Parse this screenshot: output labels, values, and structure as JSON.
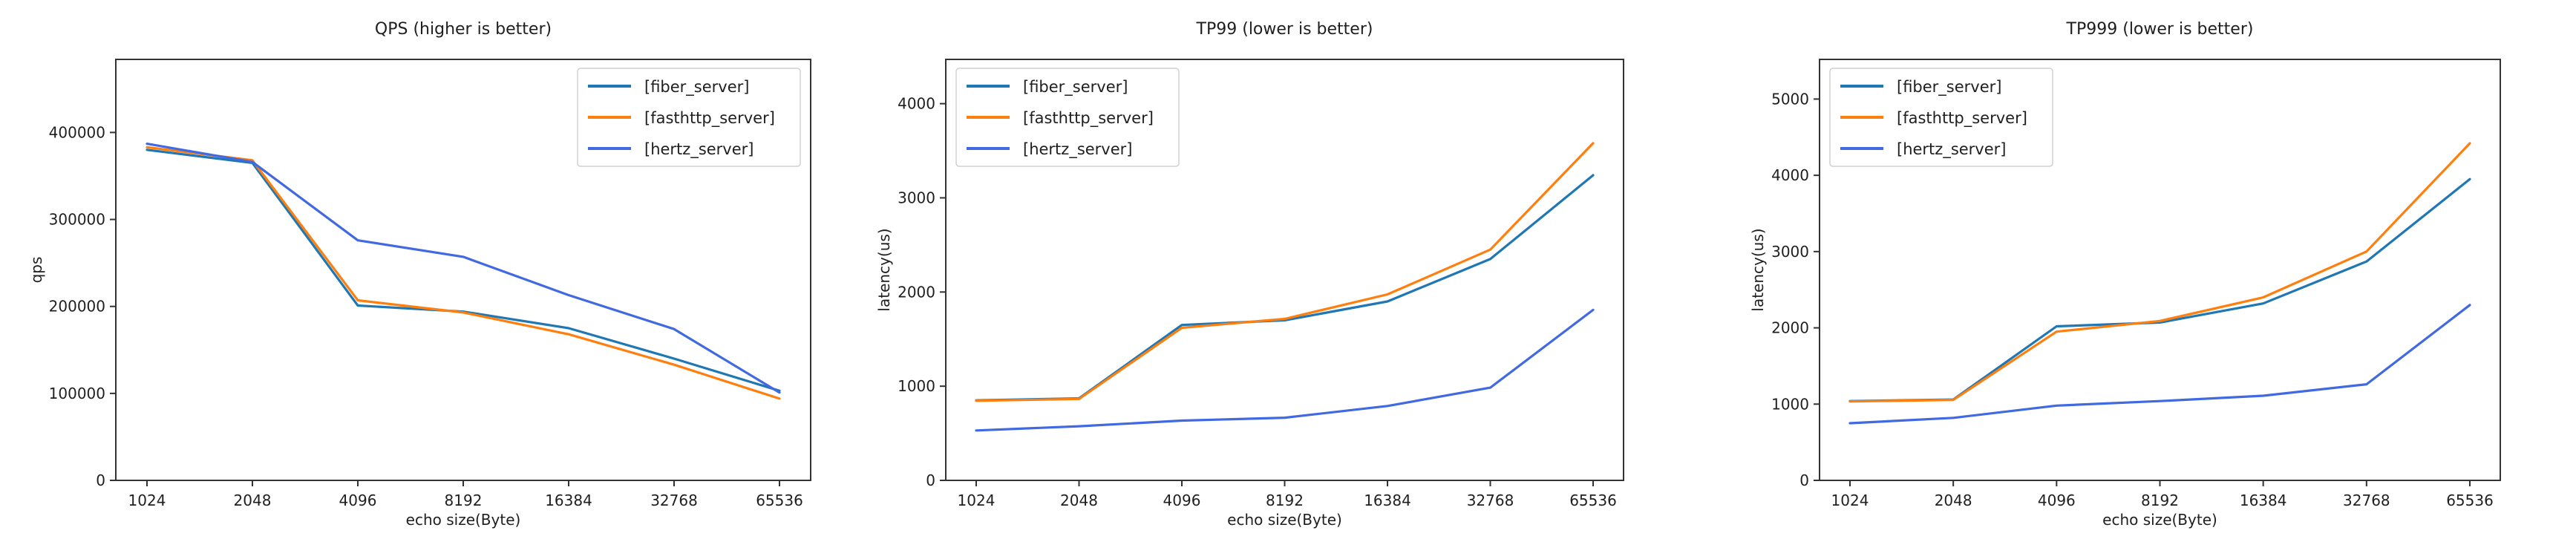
{
  "figure": {
    "background": "#ffffff",
    "text_color": "#1f1f1f",
    "spine_color": "#333333"
  },
  "chart_data": [
    {
      "id": "qps",
      "type": "line",
      "title": "QPS (higher is better)",
      "xlabel": "echo size(Byte)",
      "ylabel": "qps",
      "categories": [
        "1024",
        "2048",
        "4096",
        "8192",
        "16384",
        "32768",
        "65536"
      ],
      "yticks": [
        0,
        100000,
        200000,
        300000,
        400000
      ],
      "ylim": [
        0,
        484000
      ],
      "grid": false,
      "legend_position": "upper right",
      "series": [
        {
          "name": "[fiber_server]",
          "color": "#1f77b4",
          "values": [
            380000,
            365000,
            201000,
            194000,
            175000,
            140000,
            103000
          ]
        },
        {
          "name": "[fasthttp_server]",
          "color": "#ff7f0e",
          "values": [
            383000,
            368000,
            207000,
            193000,
            168000,
            133000,
            94000
          ]
        },
        {
          "name": "[hertz_server]",
          "color": "#4169e1",
          "values": [
            387000,
            366000,
            276000,
            257000,
            213000,
            174000,
            101000
          ]
        }
      ]
    },
    {
      "id": "tp99",
      "type": "line",
      "title": "TP99 (lower is better)",
      "xlabel": "echo size(Byte)",
      "ylabel": "latency(us)",
      "categories": [
        "1024",
        "2048",
        "4096",
        "8192",
        "16384",
        "32768",
        "65536"
      ],
      "yticks": [
        0,
        1000,
        2000,
        3000,
        4000
      ],
      "ylim": [
        0,
        4470
      ],
      "grid": false,
      "legend_position": "upper left",
      "series": [
        {
          "name": "[fiber_server]",
          "color": "#1f77b4",
          "values": [
            850,
            870,
            1650,
            1700,
            1900,
            2350,
            3240
          ]
        },
        {
          "name": "[fasthttp_server]",
          "color": "#ff7f0e",
          "values": [
            845,
            865,
            1620,
            1715,
            1975,
            2450,
            3580
          ]
        },
        {
          "name": "[hertz_server]",
          "color": "#4169e1",
          "values": [
            530,
            575,
            635,
            665,
            790,
            985,
            1810
          ]
        }
      ]
    },
    {
      "id": "tp999",
      "type": "line",
      "title": "TP999 (lower is better)",
      "xlabel": "echo size(Byte)",
      "ylabel": "latency(us)",
      "categories": [
        "1024",
        "2048",
        "4096",
        "8192",
        "16384",
        "32768",
        "65536"
      ],
      "yticks": [
        0,
        1000,
        2000,
        3000,
        4000,
        5000
      ],
      "ylim": [
        0,
        5520
      ],
      "grid": false,
      "legend_position": "upper left",
      "series": [
        {
          "name": "[fiber_server]",
          "color": "#1f77b4",
          "values": [
            1040,
            1060,
            2020,
            2070,
            2320,
            2870,
            3950
          ]
        },
        {
          "name": "[fasthttp_server]",
          "color": "#ff7f0e",
          "values": [
            1035,
            1055,
            1950,
            2090,
            2400,
            3000,
            4420
          ]
        },
        {
          "name": "[hertz_server]",
          "color": "#4169e1",
          "values": [
            750,
            820,
            980,
            1040,
            1110,
            1260,
            2300
          ]
        }
      ]
    }
  ]
}
